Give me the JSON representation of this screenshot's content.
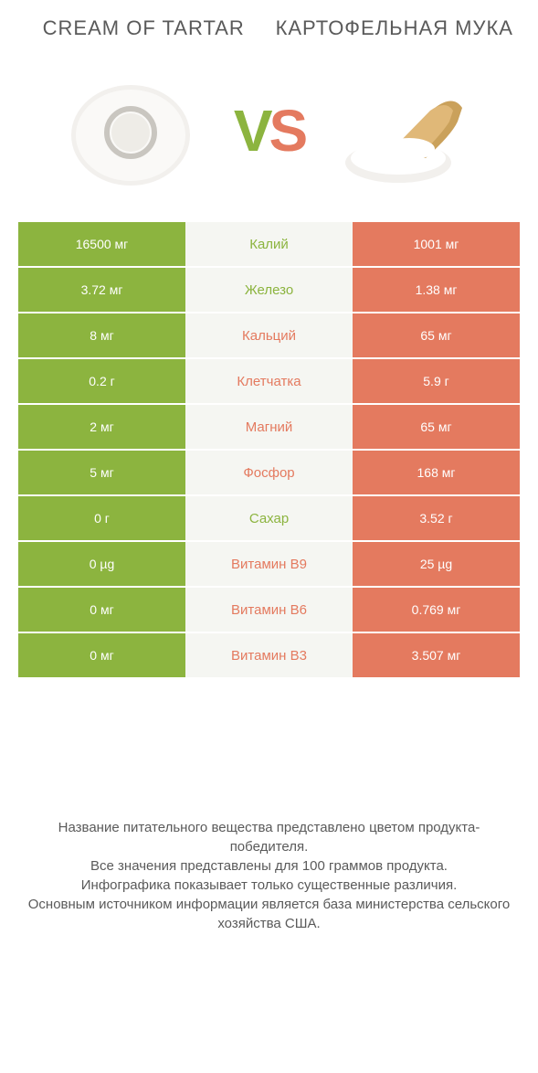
{
  "colors": {
    "green": "#8cb43f",
    "orange": "#e47a5f",
    "mid_bg": "#f5f6f2",
    "text_white": "#ffffff",
    "text_gray": "#5a5a5a"
  },
  "header": {
    "left_title": "CREAM OF TARTAR",
    "right_title": "КАРТОФЕЛЬНАЯ МУКА"
  },
  "vs": {
    "v": "V",
    "s": "S"
  },
  "rows": [
    {
      "left": "16500 мг",
      "mid": "Калий",
      "right": "1001 мг",
      "mid_color": "#8cb43f"
    },
    {
      "left": "3.72 мг",
      "mid": "Железо",
      "right": "1.38 мг",
      "mid_color": "#8cb43f"
    },
    {
      "left": "8 мг",
      "mid": "Кальций",
      "right": "65 мг",
      "mid_color": "#e47a5f"
    },
    {
      "left": "0.2 г",
      "mid": "Клетчатка",
      "right": "5.9 г",
      "mid_color": "#e47a5f"
    },
    {
      "left": "2 мг",
      "mid": "Магний",
      "right": "65 мг",
      "mid_color": "#e47a5f"
    },
    {
      "left": "5 мг",
      "mid": "Фосфор",
      "right": "168 мг",
      "mid_color": "#e47a5f"
    },
    {
      "left": "0 г",
      "mid": "Сахар",
      "right": "3.52 г",
      "mid_color": "#8cb43f"
    },
    {
      "left": "0 µg",
      "mid": "Витамин B9",
      "right": "25 µg",
      "mid_color": "#e47a5f"
    },
    {
      "left": "0 мг",
      "mid": "Витамин B6",
      "right": "0.769 мг",
      "mid_color": "#e47a5f"
    },
    {
      "left": "0 мг",
      "mid": "Витамин B3",
      "right": "3.507 мг",
      "mid_color": "#e47a5f"
    }
  ],
  "left_col_bg": "#8cb43f",
  "right_col_bg": "#e47a5f",
  "footer": {
    "l1": "Название питательного вещества представлено цветом продукта-победителя.",
    "l2": "Все значения представлены для 100 граммов продукта.",
    "l3": "Инфографика показывает только существенные различия.",
    "l4": "Основным источником информации является база министерства сельского хозяйства США."
  }
}
